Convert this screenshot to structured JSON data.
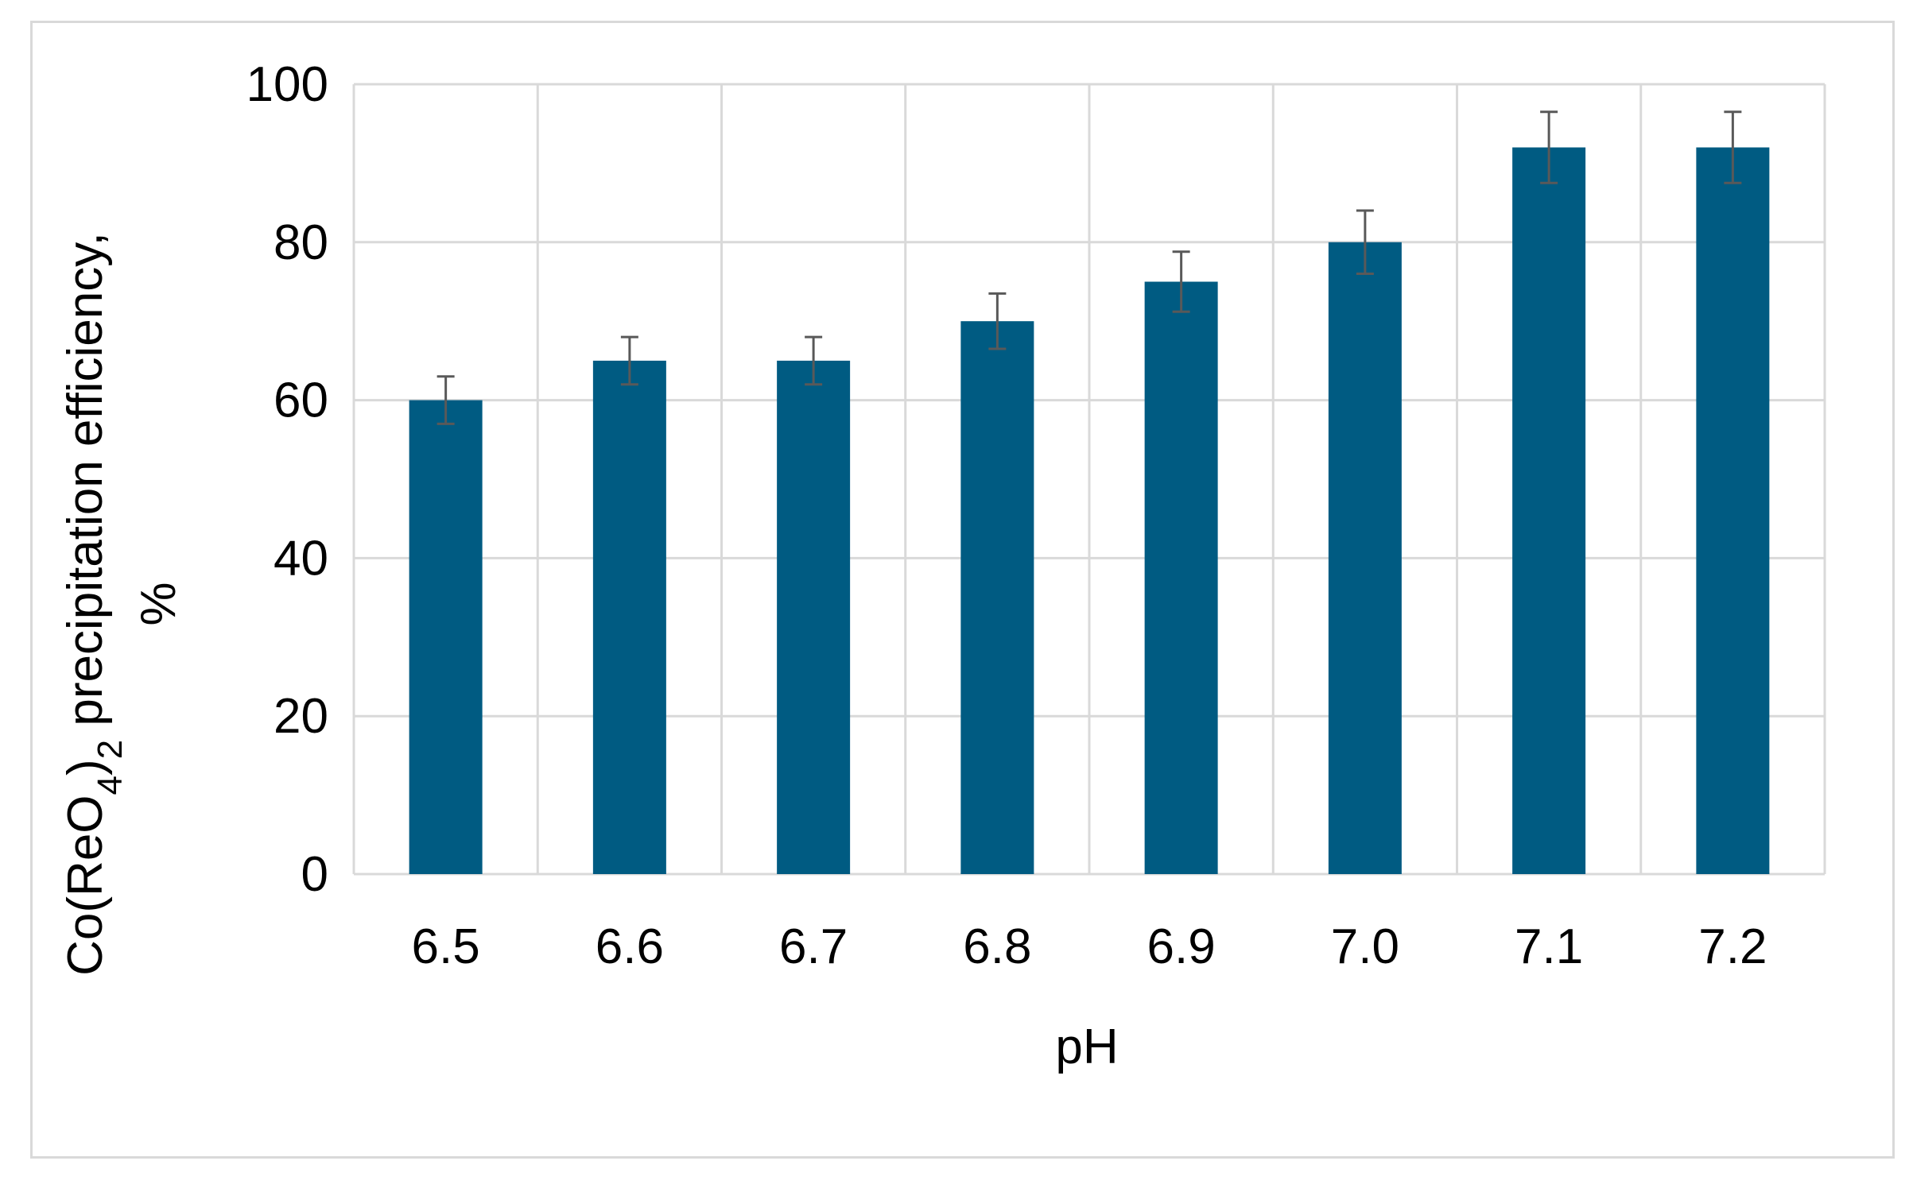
{
  "chart_data": {
    "type": "bar",
    "title": "",
    "categories": [
      "6.5",
      "6.6",
      "6.7",
      "6.8",
      "6.9",
      "7.0",
      "7.1",
      "7.2"
    ],
    "series": [
      {
        "values": [
          60,
          65,
          65,
          70,
          75,
          80,
          92,
          92
        ],
        "error": [
          3,
          3,
          3,
          3.5,
          3.8,
          4,
          4.5,
          4.5
        ],
        "color": "#005b82"
      }
    ],
    "xlabel": "pH",
    "ylabel_prefix": "Co(ReO",
    "ylabel_sub1": "4",
    "ylabel_mid": ")",
    "ylabel_sub2": "2",
    "ylabel_suffix": " precipitation efficiency,",
    "ylabel_line2": "%",
    "ylim": [
      0,
      100
    ],
    "yticks": [
      "0",
      "20",
      "40",
      "60",
      "80",
      "100"
    ],
    "grid": true,
    "gridline_color": "#d9d9d9",
    "errorbar_color": "#595959"
  }
}
